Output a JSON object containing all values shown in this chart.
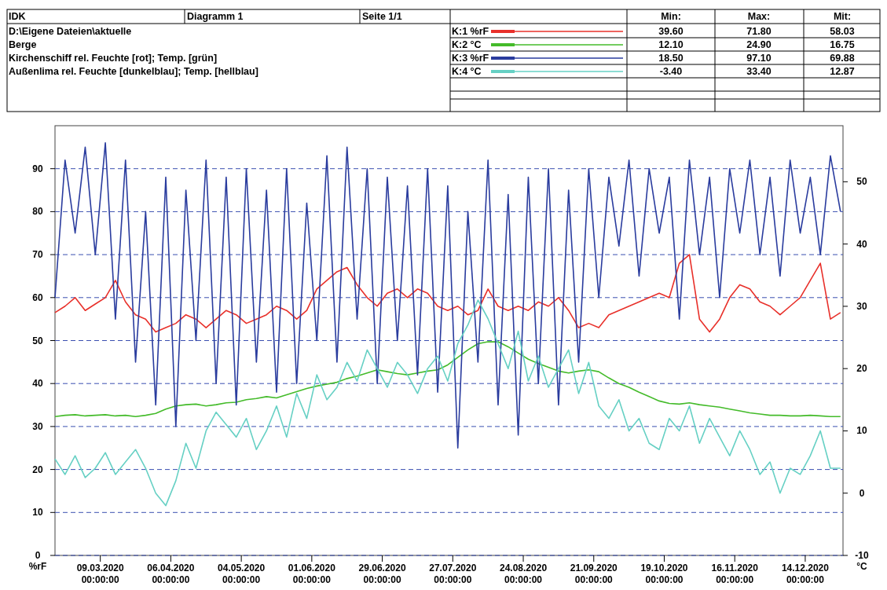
{
  "chart_data": {
    "type": "line",
    "annotations": [
      "IDK",
      "Diagramm 1",
      "Seite 1/1",
      "D:\\Eigene Dateien\\aktuelle",
      "Berge",
      "Kirchenschiff rel. Feuchte [rot]; Temp. [grün]",
      "Außenlima rel. Feuchte [dunkelblau]; Temp. [hellblau]",
      "Min:",
      "Max:",
      "Mit:",
      "39.60",
      "71.80",
      "58.03",
      "12.10",
      "24.90",
      "16.75",
      "18.50",
      "97.10",
      "69.88",
      "-3.40",
      "33.40",
      "12.87"
    ],
    "ylabel": "%rF",
    "y2label": "°C",
    "xlim": [
      "2020-02-20",
      "2020-12-29"
    ],
    "xticks": [
      {
        "value": "2020-03-09",
        "label": "09.03.2020\n00:00:00"
      },
      {
        "value": "2020-04-06",
        "label": "06.04.2020\n00:00:00"
      },
      {
        "value": "2020-05-04",
        "label": "04.05.2020\n00:00:00"
      },
      {
        "value": "2020-06-01",
        "label": "01.06.2020\n00:00:00"
      },
      {
        "value": "2020-06-29",
        "label": "29.06.2020\n00:00:00"
      },
      {
        "value": "2020-07-27",
        "label": "27.07.2020\n00:00:00"
      },
      {
        "value": "2020-08-24",
        "label": "24.08.2020\n00:00:00"
      },
      {
        "value": "2020-09-21",
        "label": "21.09.2020\n00:00:00"
      },
      {
        "value": "2020-10-19",
        "label": "19.10.2020\n00:00:00"
      },
      {
        "value": "2020-11-16",
        "label": "16.11.2020\n00:00:00"
      },
      {
        "value": "2020-12-14",
        "label": "14.12.2020\n00:00:00"
      }
    ],
    "ylim": [
      0,
      100
    ],
    "yticks": [
      0,
      10,
      20,
      30,
      40,
      50,
      60,
      70,
      80,
      90
    ],
    "y2lim": [
      -10,
      59
    ],
    "y2ticks": [
      -10,
      0,
      10,
      20,
      30,
      40,
      50
    ],
    "grid": "y",
    "legend": "top right",
    "line_style": "solid",
    "x": [
      "2020-02-20",
      "2020-02-24",
      "2020-02-28",
      "2020-03-03",
      "2020-03-07",
      "2020-03-11",
      "2020-03-15",
      "2020-03-19",
      "2020-03-23",
      "2020-03-27",
      "2020-03-31",
      "2020-04-04",
      "2020-04-08",
      "2020-04-12",
      "2020-04-16",
      "2020-04-20",
      "2020-04-24",
      "2020-04-28",
      "2020-05-02",
      "2020-05-06",
      "2020-05-10",
      "2020-05-14",
      "2020-05-18",
      "2020-05-22",
      "2020-05-26",
      "2020-05-30",
      "2020-06-03",
      "2020-06-07",
      "2020-06-11",
      "2020-06-15",
      "2020-06-19",
      "2020-06-23",
      "2020-06-27",
      "2020-07-01",
      "2020-07-05",
      "2020-07-09",
      "2020-07-13",
      "2020-07-17",
      "2020-07-21",
      "2020-07-25",
      "2020-07-29",
      "2020-08-02",
      "2020-08-06",
      "2020-08-10",
      "2020-08-14",
      "2020-08-18",
      "2020-08-22",
      "2020-08-26",
      "2020-08-30",
      "2020-09-03",
      "2020-09-07",
      "2020-09-11",
      "2020-09-15",
      "2020-09-19",
      "2020-09-23",
      "2020-09-27",
      "2020-10-01",
      "2020-10-05",
      "2020-10-09",
      "2020-10-13",
      "2020-10-17",
      "2020-10-21",
      "2020-10-25",
      "2020-10-29",
      "2020-11-02",
      "2020-11-06",
      "2020-11-10",
      "2020-11-14",
      "2020-11-18",
      "2020-11-22",
      "2020-11-26",
      "2020-11-30",
      "2020-12-04",
      "2020-12-08",
      "2020-12-12",
      "2020-12-16",
      "2020-12-20",
      "2020-12-24",
      "2020-12-28"
    ],
    "series": [
      {
        "name": "K:1 %rF",
        "color": "#e8302a",
        "values": [
          56.5,
          58,
          60,
          57,
          58.5,
          60,
          64,
          59,
          56,
          55,
          52,
          53,
          54,
          56,
          55,
          53,
          55,
          57,
          56,
          54,
          55,
          56,
          58,
          57,
          55,
          57,
          62,
          64,
          66,
          67,
          63,
          60,
          58,
          61,
          62,
          60,
          62,
          61,
          58,
          57,
          58,
          56,
          57,
          62,
          58,
          57,
          58,
          57,
          59,
          58,
          60,
          57,
          53,
          54,
          53,
          56,
          57,
          58,
          59,
          60,
          61,
          60,
          68,
          70,
          55,
          52,
          55,
          60,
          63,
          62,
          59,
          58,
          56,
          58,
          60,
          64,
          68,
          55,
          56.5
        ]
      },
      {
        "name": "K:2 °C",
        "color": "#44bb2a",
        "axis": "y2",
        "values": [
          12.3,
          12.5,
          12.6,
          12.4,
          12.5,
          12.6,
          12.4,
          12.5,
          12.3,
          12.5,
          12.8,
          13.5,
          14,
          14.2,
          14.3,
          14,
          14.2,
          14.5,
          14.6,
          15,
          15.2,
          15.5,
          15.3,
          15.8,
          16.3,
          16.8,
          17.2,
          17.5,
          17.8,
          18.4,
          18.8,
          19.3,
          19.8,
          19.5,
          19.2,
          19,
          19.3,
          19.6,
          19.8,
          20.6,
          21.8,
          23,
          24,
          24.3,
          24.3,
          23.5,
          22.5,
          21.5,
          20.8,
          20.2,
          19.6,
          19.3,
          19.6,
          19.8,
          19.5,
          18.5,
          17.6,
          17,
          16.2,
          15.5,
          14.8,
          14.4,
          14.3,
          14.5,
          14.2,
          14,
          13.8,
          13.5,
          13.2,
          12.9,
          12.7,
          12.5,
          12.5,
          12.4,
          12.4,
          12.5,
          12.4,
          12.3,
          12.3
        ]
      },
      {
        "name": "K:3 %rF",
        "color": "#2a3c9e",
        "values": [
          60,
          92,
          75,
          95,
          70,
          96,
          55,
          92,
          45,
          80,
          35,
          88,
          30,
          85,
          50,
          92,
          40,
          88,
          35,
          90,
          45,
          85,
          38,
          90,
          40,
          82,
          50,
          93,
          45,
          95,
          55,
          90,
          40,
          88,
          50,
          86,
          42,
          90,
          38,
          86,
          25,
          80,
          45,
          92,
          35,
          84,
          28,
          88,
          40,
          90,
          35,
          85,
          45,
          90,
          60,
          88,
          72,
          92,
          65,
          90,
          75,
          88,
          55,
          92,
          70,
          88,
          60,
          90,
          75,
          92,
          70,
          88,
          65,
          92,
          75,
          88,
          70,
          93,
          80
        ]
      },
      {
        "name": "K:4 °C",
        "color": "#66d0c4",
        "axis": "y2",
        "values": [
          5.5,
          3,
          6,
          2.5,
          4,
          6.5,
          3,
          5,
          7,
          4,
          0,
          -2,
          2,
          8,
          4,
          10,
          13,
          11,
          9,
          12,
          7,
          10,
          14,
          9,
          16,
          12,
          19,
          15,
          17,
          21,
          18,
          23,
          20,
          17,
          21,
          19,
          16,
          20,
          22,
          18,
          24,
          27,
          31,
          28,
          24,
          20,
          26,
          18,
          22,
          17,
          20,
          23,
          16,
          21,
          14,
          12,
          15,
          10,
          12,
          8,
          7,
          12,
          10,
          14,
          8,
          12,
          9,
          6,
          10,
          7,
          3,
          5,
          0,
          4,
          3,
          6,
          10,
          4,
          4
        ]
      }
    ]
  }
}
